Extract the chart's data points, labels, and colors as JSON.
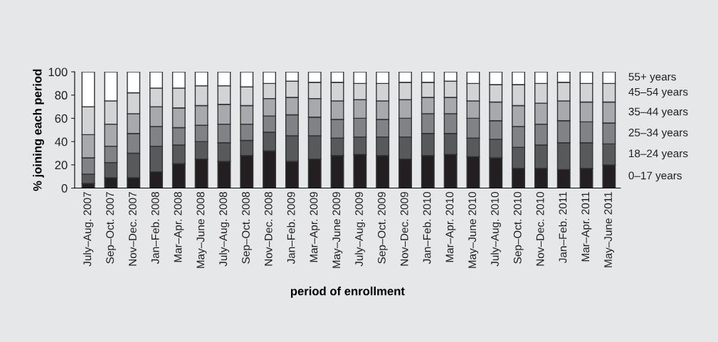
{
  "chart_data": {
    "type": "bar",
    "stacked": true,
    "xlabel": "period of enrollment",
    "ylabel": "% joining each period",
    "categories": [
      "July–Aug. 2007",
      "Sep–Oct. 2007",
      "Nov–Dec. 2007",
      "Jan–Feb. 2008",
      "Mar–Apr. 2008",
      "May–June 2008",
      "July–Aug. 2008",
      "Sep–Oct. 2008",
      "Nov–Dec. 2008",
      "Jan–Feb. 2009",
      "Mar–Apr. 2009",
      "May–June 2009",
      "July–Aug. 2009",
      "Sep–Oct. 2009",
      "Nov–Dec. 2009",
      "Jan–Feb. 2010",
      "Mar–Apr. 2010",
      "May–June 2010",
      "July–Aug. 2010",
      "Sep–Oct. 2010",
      "Nov–Dec. 2010",
      "Jan–Feb. 2011",
      "Mar–Apr. 2011",
      "May–June 2011"
    ],
    "series": [
      {
        "name": "0–17 years",
        "color": "#231f20",
        "values": [
          4,
          9,
          9,
          14,
          21,
          25,
          23,
          28,
          32,
          23,
          25,
          28,
          29,
          28,
          25,
          28,
          29,
          27,
          26,
          17,
          17,
          16,
          17,
          20
        ]
      },
      {
        "name": "18–24 years",
        "color": "#58595b",
        "values": [
          8,
          13,
          21,
          22,
          16,
          15,
          16,
          13,
          16,
          22,
          20,
          15,
          15,
          16,
          19,
          19,
          18,
          16,
          16,
          18,
          20,
          23,
          22,
          18
        ]
      },
      {
        "name": "25–34 years",
        "color": "#808285",
        "values": [
          14,
          14,
          17,
          17,
          15,
          14,
          16,
          14,
          14,
          18,
          16,
          16,
          16,
          15,
          16,
          17,
          17,
          17,
          16,
          18,
          18,
          19,
          18,
          18
        ]
      },
      {
        "name": "35–44 years",
        "color": "#a7a9ac",
        "values": [
          20,
          19,
          17,
          17,
          17,
          17,
          17,
          16,
          15,
          15,
          16,
          16,
          16,
          16,
          16,
          14,
          14,
          15,
          16,
          18,
          18,
          17,
          17,
          18
        ]
      },
      {
        "name": "45–54 years",
        "color": "#d1d3d4",
        "values": [
          24,
          20,
          18,
          16,
          17,
          17,
          16,
          16,
          13,
          14,
          14,
          16,
          14,
          15,
          15,
          13,
          14,
          15,
          15,
          18,
          17,
          16,
          16,
          16
        ]
      },
      {
        "name": "55+ years",
        "color": "#ffffff",
        "values": [
          30,
          25,
          18,
          14,
          14,
          12,
          12,
          13,
          10,
          8,
          9,
          9,
          10,
          10,
          9,
          9,
          8,
          10,
          11,
          11,
          10,
          9,
          10,
          10
        ]
      }
    ],
    "ylim": [
      0,
      100
    ],
    "yticks": [
      0,
      20,
      40,
      60,
      80,
      100
    ],
    "grid": false,
    "legend": false
  }
}
